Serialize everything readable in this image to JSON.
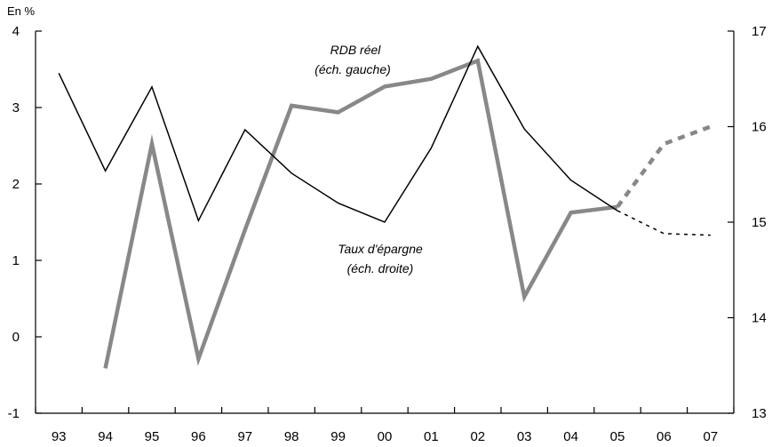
{
  "chart_data": {
    "type": "line",
    "unit_label": "En %",
    "categories": [
      "93",
      "94",
      "95",
      "96",
      "97",
      "98",
      "99",
      "00",
      "01",
      "02",
      "03",
      "04",
      "05",
      "06",
      "07"
    ],
    "left_axis": {
      "ylim": [
        -1,
        4
      ],
      "ticks": [
        "-1",
        "0",
        "1",
        "2",
        "3",
        "4"
      ]
    },
    "right_axis": {
      "ylim": [
        13,
        17
      ],
      "ticks": [
        "13",
        "14",
        "15",
        "16",
        "17"
      ]
    },
    "series": [
      {
        "name": "RDB réel",
        "axis": "left",
        "color": "#000000",
        "values": [
          3.45,
          2.17,
          3.27,
          1.52,
          2.71,
          2.14,
          1.75,
          1.5,
          2.47,
          3.8,
          2.72,
          2.05,
          1.65,
          1.35,
          1.33
        ],
        "dashed_from_index": 12
      },
      {
        "name": "Taux d'épargne",
        "axis": "right",
        "color": "#888888",
        "values": [
          null,
          13.47,
          15.82,
          13.57,
          14.92,
          16.22,
          16.15,
          16.42,
          16.5,
          16.69,
          14.22,
          15.1,
          15.16,
          15.82,
          16.0
        ],
        "dashed_from_index": 12
      }
    ],
    "annotations": {
      "rdb_line1": "RDB réel",
      "rdb_line2": "(éch. gauche)",
      "taux_line1": "Taux d'épargne",
      "taux_line2": "(éch. droite)"
    }
  }
}
